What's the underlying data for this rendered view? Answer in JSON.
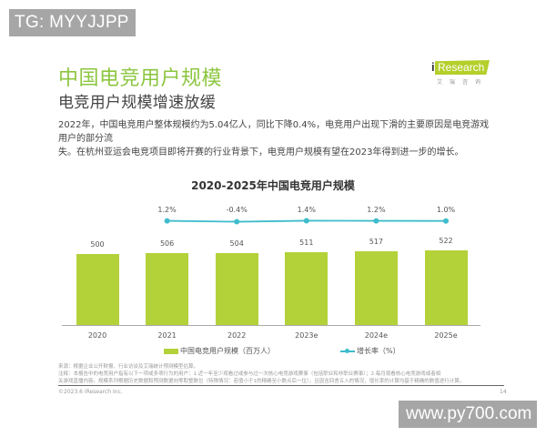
{
  "watermarks": {
    "top_left": "TG: MYYJJPP",
    "bottom_right": "www.py700.com"
  },
  "header": {
    "title": "中国电竞用户规模",
    "subtitle": "电竞用户规模增速放缓"
  },
  "logo": {
    "brand_i": "i",
    "brand_text": "Research",
    "cn": "艾瑞咨询",
    "color": "#b5cf2b"
  },
  "description": {
    "line1": "2022年，中国电竞用户整体规模约为5.04亿人，同比下降0.4%，电竞用户出现下滑的主要原因是电竞游戏用户的部分流",
    "line2": "失。在杭州亚运会电竞项目即将开赛的行业背景下，电竞用户规模有望在2023年得到进一步的增长。"
  },
  "chart_data": {
    "type": "bar",
    "title": "2020-2025年中国电竞用户规模",
    "categories": [
      "2020",
      "2021",
      "2022",
      "2023e",
      "2024e",
      "2025e"
    ],
    "series": [
      {
        "name": "中国电竞用户规模（百万人）",
        "type": "bar",
        "color": "#b3d23a",
        "values": [
          500,
          506,
          504,
          511,
          517,
          522
        ],
        "labels": [
          "500",
          "506",
          "504",
          "511",
          "517",
          "522"
        ]
      },
      {
        "name": "增长率（%）",
        "type": "line",
        "color": "#3fbccc",
        "x": [
          "2021",
          "2022",
          "2023e",
          "2024e",
          "2025e"
        ],
        "values": [
          1.2,
          -0.4,
          1.4,
          1.2,
          1.0
        ],
        "labels": [
          "1.2%",
          "-0.4%",
          "1.4%",
          "1.2%",
          "1.0%"
        ]
      }
    ],
    "xlabel": "",
    "ylabel": "",
    "grid": false,
    "legend_position": "bottom",
    "legend": [
      "中国电竞用户规模（百万人）",
      "增长率（%）"
    ]
  },
  "notes": {
    "source": "来源：根据企业公开财报、行业访谈及艾瑞统计预测模型估算。",
    "note_line1": "注释：本报告中的电竞用户指有以下一项或多项行为的用户：1.近一年至少观看过或参与过一次核心电竞游戏赛事（包括职业和非职业赛事）；2.每月观看核心电竞游戏或者相",
    "note_line2": "关游戏直播内容。规模系列根据历史数据和预测数据向零取整数位（特殊情况：若值小于1的精确至小数点后一位），且因含四舍五入的情况，增长率的计算均基于精确的数值进行计算。",
    "copyright": "©2023.6 iResearch Inc.",
    "page_number": "14"
  }
}
